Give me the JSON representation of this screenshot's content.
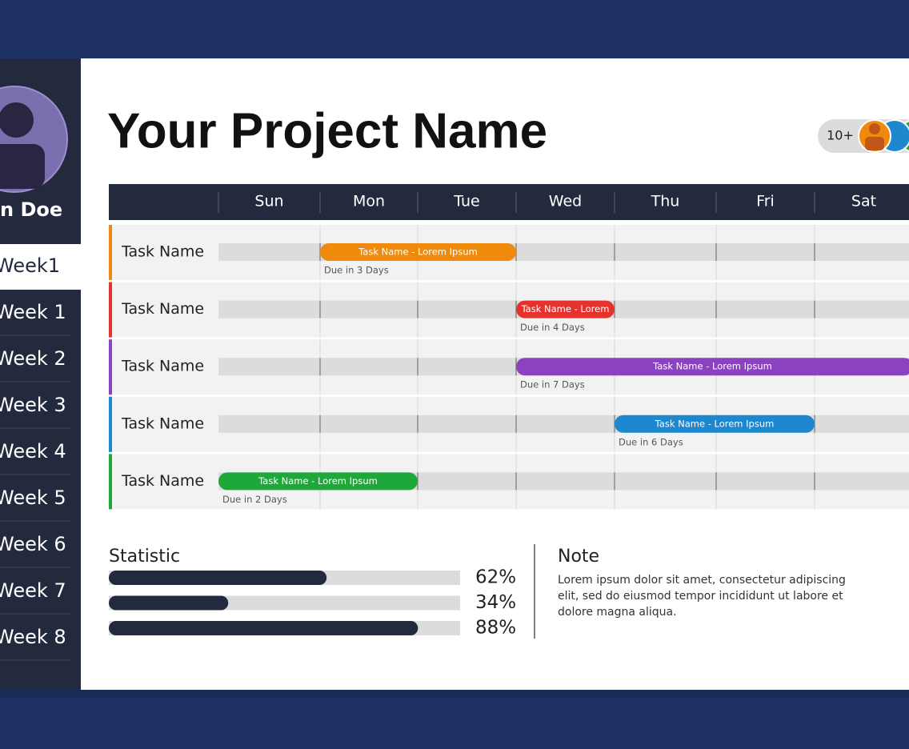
{
  "sidebar": {
    "user_name": "n Doe",
    "active_item": "Week1",
    "items": [
      "Week 1",
      "Week 2",
      "Week 3",
      "Week 4",
      "Week 5",
      "Week 6",
      "Week 7",
      "Week 8"
    ]
  },
  "header": {
    "title": "Your Project Name",
    "members_badge": "10+"
  },
  "gantt": {
    "days": [
      "Sun",
      "Mon",
      "Tue",
      "Wed",
      "Thu",
      "Fri",
      "Sat"
    ],
    "tasks": [
      {
        "name": "Task Name",
        "bar_label": "Task Name - Lorem Ipsum",
        "due": "Due in 3 Days",
        "start": 1,
        "end": 2,
        "color": "#f08a0c"
      },
      {
        "name": "Task Name",
        "bar_label": "Task Name - Lorem",
        "due": "Due in 4 Days",
        "start": 3,
        "end": 3,
        "color": "#e5322d"
      },
      {
        "name": "Task Name",
        "bar_label": "Task Name - Lorem Ipsum",
        "due": "Due in 7 Days",
        "start": 3,
        "end": 6,
        "color": "#8a42bf"
      },
      {
        "name": "Task Name",
        "bar_label": "Task Name - Lorem Ipsum",
        "due": "Due in 6 Days",
        "start": 4,
        "end": 5,
        "color": "#1e88cf"
      },
      {
        "name": "Task Name",
        "bar_label": "Task Name - Lorem Ipsum",
        "due": "Due in 2 Days",
        "start": 0,
        "end": 1,
        "color": "#1fa83a"
      }
    ]
  },
  "statistic": {
    "title": "Statistic",
    "max": 100,
    "values": [
      62,
      34,
      88
    ],
    "value_labels": [
      "62%",
      "34%",
      "88%"
    ]
  },
  "note": {
    "title": "Note",
    "lines": [
      "Lorem ipsum dolor sit amet, consectetur adipiscing",
      "elit, sed do eiusmod tempor incididunt ut labore et",
      "dolore magna aliqua."
    ]
  }
}
